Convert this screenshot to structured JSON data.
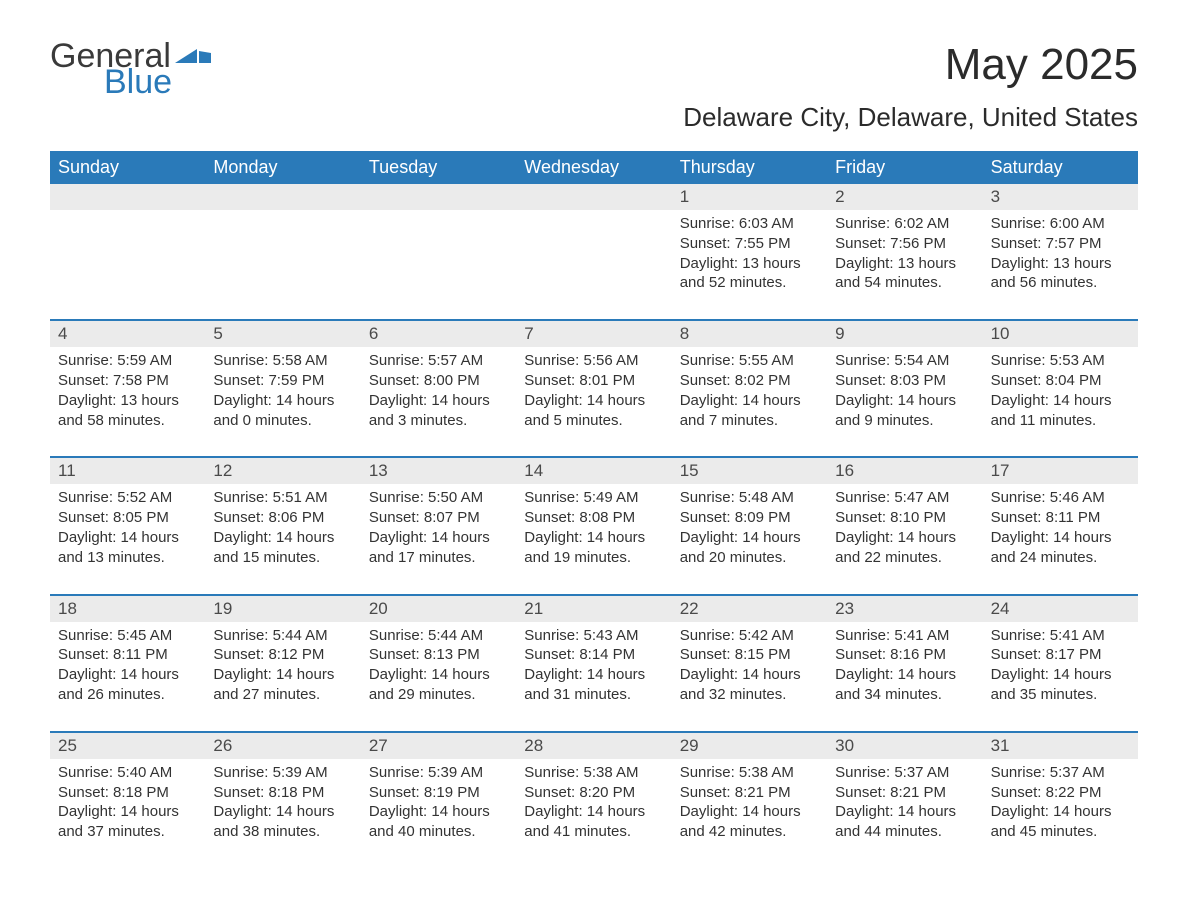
{
  "logo": {
    "text1": "General",
    "text2": "Blue"
  },
  "title": "May 2025",
  "location": "Delaware City, Delaware, United States",
  "colors": {
    "brand_blue": "#2a7ab9",
    "band_gray": "#ebebeb",
    "text_dark": "#333333",
    "title_dark": "#2b2b2b",
    "white": "#ffffff"
  },
  "weekdays": [
    "Sunday",
    "Monday",
    "Tuesday",
    "Wednesday",
    "Thursday",
    "Friday",
    "Saturday"
  ],
  "weeks": [
    {
      "days": [
        {
          "num": "",
          "sunrise": "",
          "sunset": "",
          "daylight": ""
        },
        {
          "num": "",
          "sunrise": "",
          "sunset": "",
          "daylight": ""
        },
        {
          "num": "",
          "sunrise": "",
          "sunset": "",
          "daylight": ""
        },
        {
          "num": "",
          "sunrise": "",
          "sunset": "",
          "daylight": ""
        },
        {
          "num": "1",
          "sunrise": "Sunrise: 6:03 AM",
          "sunset": "Sunset: 7:55 PM",
          "daylight": "Daylight: 13 hours and 52 minutes."
        },
        {
          "num": "2",
          "sunrise": "Sunrise: 6:02 AM",
          "sunset": "Sunset: 7:56 PM",
          "daylight": "Daylight: 13 hours and 54 minutes."
        },
        {
          "num": "3",
          "sunrise": "Sunrise: 6:00 AM",
          "sunset": "Sunset: 7:57 PM",
          "daylight": "Daylight: 13 hours and 56 minutes."
        }
      ]
    },
    {
      "days": [
        {
          "num": "4",
          "sunrise": "Sunrise: 5:59 AM",
          "sunset": "Sunset: 7:58 PM",
          "daylight": "Daylight: 13 hours and 58 minutes."
        },
        {
          "num": "5",
          "sunrise": "Sunrise: 5:58 AM",
          "sunset": "Sunset: 7:59 PM",
          "daylight": "Daylight: 14 hours and 0 minutes."
        },
        {
          "num": "6",
          "sunrise": "Sunrise: 5:57 AM",
          "sunset": "Sunset: 8:00 PM",
          "daylight": "Daylight: 14 hours and 3 minutes."
        },
        {
          "num": "7",
          "sunrise": "Sunrise: 5:56 AM",
          "sunset": "Sunset: 8:01 PM",
          "daylight": "Daylight: 14 hours and 5 minutes."
        },
        {
          "num": "8",
          "sunrise": "Sunrise: 5:55 AM",
          "sunset": "Sunset: 8:02 PM",
          "daylight": "Daylight: 14 hours and 7 minutes."
        },
        {
          "num": "9",
          "sunrise": "Sunrise: 5:54 AM",
          "sunset": "Sunset: 8:03 PM",
          "daylight": "Daylight: 14 hours and 9 minutes."
        },
        {
          "num": "10",
          "sunrise": "Sunrise: 5:53 AM",
          "sunset": "Sunset: 8:04 PM",
          "daylight": "Daylight: 14 hours and 11 minutes."
        }
      ]
    },
    {
      "days": [
        {
          "num": "11",
          "sunrise": "Sunrise: 5:52 AM",
          "sunset": "Sunset: 8:05 PM",
          "daylight": "Daylight: 14 hours and 13 minutes."
        },
        {
          "num": "12",
          "sunrise": "Sunrise: 5:51 AM",
          "sunset": "Sunset: 8:06 PM",
          "daylight": "Daylight: 14 hours and 15 minutes."
        },
        {
          "num": "13",
          "sunrise": "Sunrise: 5:50 AM",
          "sunset": "Sunset: 8:07 PM",
          "daylight": "Daylight: 14 hours and 17 minutes."
        },
        {
          "num": "14",
          "sunrise": "Sunrise: 5:49 AM",
          "sunset": "Sunset: 8:08 PM",
          "daylight": "Daylight: 14 hours and 19 minutes."
        },
        {
          "num": "15",
          "sunrise": "Sunrise: 5:48 AM",
          "sunset": "Sunset: 8:09 PM",
          "daylight": "Daylight: 14 hours and 20 minutes."
        },
        {
          "num": "16",
          "sunrise": "Sunrise: 5:47 AM",
          "sunset": "Sunset: 8:10 PM",
          "daylight": "Daylight: 14 hours and 22 minutes."
        },
        {
          "num": "17",
          "sunrise": "Sunrise: 5:46 AM",
          "sunset": "Sunset: 8:11 PM",
          "daylight": "Daylight: 14 hours and 24 minutes."
        }
      ]
    },
    {
      "days": [
        {
          "num": "18",
          "sunrise": "Sunrise: 5:45 AM",
          "sunset": "Sunset: 8:11 PM",
          "daylight": "Daylight: 14 hours and 26 minutes."
        },
        {
          "num": "19",
          "sunrise": "Sunrise: 5:44 AM",
          "sunset": "Sunset: 8:12 PM",
          "daylight": "Daylight: 14 hours and 27 minutes."
        },
        {
          "num": "20",
          "sunrise": "Sunrise: 5:44 AM",
          "sunset": "Sunset: 8:13 PM",
          "daylight": "Daylight: 14 hours and 29 minutes."
        },
        {
          "num": "21",
          "sunrise": "Sunrise: 5:43 AM",
          "sunset": "Sunset: 8:14 PM",
          "daylight": "Daylight: 14 hours and 31 minutes."
        },
        {
          "num": "22",
          "sunrise": "Sunrise: 5:42 AM",
          "sunset": "Sunset: 8:15 PM",
          "daylight": "Daylight: 14 hours and 32 minutes."
        },
        {
          "num": "23",
          "sunrise": "Sunrise: 5:41 AM",
          "sunset": "Sunset: 8:16 PM",
          "daylight": "Daylight: 14 hours and 34 minutes."
        },
        {
          "num": "24",
          "sunrise": "Sunrise: 5:41 AM",
          "sunset": "Sunset: 8:17 PM",
          "daylight": "Daylight: 14 hours and 35 minutes."
        }
      ]
    },
    {
      "days": [
        {
          "num": "25",
          "sunrise": "Sunrise: 5:40 AM",
          "sunset": "Sunset: 8:18 PM",
          "daylight": "Daylight: 14 hours and 37 minutes."
        },
        {
          "num": "26",
          "sunrise": "Sunrise: 5:39 AM",
          "sunset": "Sunset: 8:18 PM",
          "daylight": "Daylight: 14 hours and 38 minutes."
        },
        {
          "num": "27",
          "sunrise": "Sunrise: 5:39 AM",
          "sunset": "Sunset: 8:19 PM",
          "daylight": "Daylight: 14 hours and 40 minutes."
        },
        {
          "num": "28",
          "sunrise": "Sunrise: 5:38 AM",
          "sunset": "Sunset: 8:20 PM",
          "daylight": "Daylight: 14 hours and 41 minutes."
        },
        {
          "num": "29",
          "sunrise": "Sunrise: 5:38 AM",
          "sunset": "Sunset: 8:21 PM",
          "daylight": "Daylight: 14 hours and 42 minutes."
        },
        {
          "num": "30",
          "sunrise": "Sunrise: 5:37 AM",
          "sunset": "Sunset: 8:21 PM",
          "daylight": "Daylight: 14 hours and 44 minutes."
        },
        {
          "num": "31",
          "sunrise": "Sunrise: 5:37 AM",
          "sunset": "Sunset: 8:22 PM",
          "daylight": "Daylight: 14 hours and 45 minutes."
        }
      ]
    }
  ]
}
